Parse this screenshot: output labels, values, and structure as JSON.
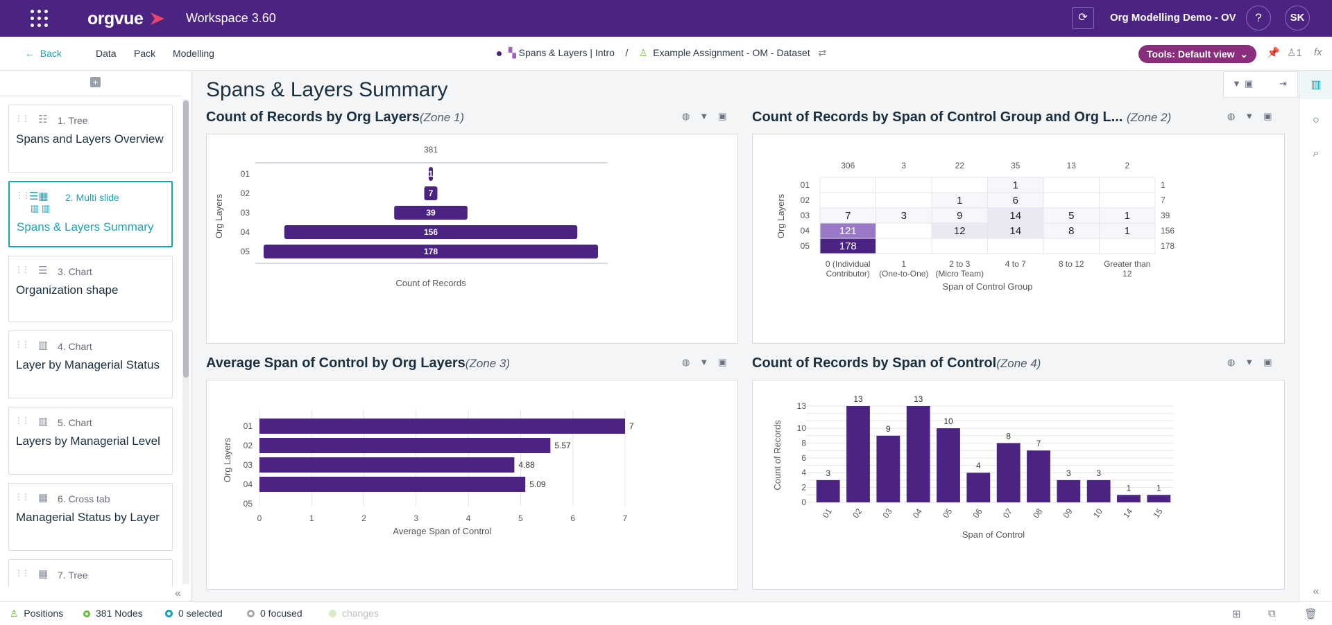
{
  "topbar": {
    "logo": "orgvue",
    "workspace": "Workspace  3.60",
    "project": "Org Modelling Demo - OV",
    "help": "?",
    "user_initials": "SK"
  },
  "subbar": {
    "back": "Back",
    "menu": [
      "Data",
      "Pack",
      "Modelling"
    ],
    "crumb_page": "Spans & Layers | Intro",
    "crumb_sep": "/",
    "crumb_dataset": "Example Assignment - OM - Dataset",
    "tools_label": "Tools: Default view",
    "count": "1"
  },
  "sidebar": {
    "slides": [
      {
        "kind": "1. Tree",
        "title": "Spans and Layers Overview"
      },
      {
        "kind": "2. Multi slide",
        "title": "Spans & Layers Summary"
      },
      {
        "kind": "3. Chart",
        "title": "Organization shape"
      },
      {
        "kind": "4. Chart",
        "title": "Layer by Managerial Status"
      },
      {
        "kind": "5. Chart",
        "title": "Layers by Managerial Level"
      },
      {
        "kind": "6. Cross tab",
        "title": "Managerial Status by Layer"
      },
      {
        "kind": "7. Tree",
        "title": ""
      }
    ]
  },
  "main": {
    "page_title": "Spans & Layers Summary",
    "zones": [
      {
        "title": "Count of Records by Org Layers",
        "zone": "(Zone 1)"
      },
      {
        "title": "Count of Records by Span of Control Group and Org L...",
        "zone": "(Zone 2)"
      },
      {
        "title": "Average Span of Control by Org Layers",
        "zone": "(Zone 3)"
      },
      {
        "title": "Count of Records by Span of Control",
        "zone": "(Zone 4)"
      }
    ]
  },
  "colors": {
    "brand": "#4b2382",
    "accent": "#1aa3b8",
    "tools": "#8b2d7d",
    "bar": "#4b2382"
  },
  "chart_data": [
    {
      "type": "bar",
      "orientation": "horizontal-centered",
      "title": "Count of Records by Org Layers",
      "categories": [
        "01",
        "02",
        "03",
        "04",
        "05"
      ],
      "values": [
        1,
        7,
        39,
        156,
        178
      ],
      "labels": [
        "1",
        "7",
        "39",
        "156",
        "178"
      ],
      "total": "381",
      "xlabel": "Count of Records",
      "ylabel": "Org Layers"
    },
    {
      "type": "heatmap",
      "title": "Count of Records by Span of Control Group and Org Layers",
      "rows": [
        "01",
        "02",
        "03",
        "04",
        "05"
      ],
      "columns": [
        "0 (Individual Contributor)",
        "1 (One-to-One)",
        "2 to 3 (Micro Team)",
        "4 to 7",
        "8 to 12",
        "Greater than 12"
      ],
      "column_totals": [
        "306",
        "3",
        "22",
        "35",
        "13",
        "2"
      ],
      "row_totals": [
        "1",
        "7",
        "39",
        "156",
        "178"
      ],
      "cells": [
        [
          "",
          "",
          "",
          "1",
          "",
          ""
        ],
        [
          "",
          "",
          "1",
          "6",
          "",
          ""
        ],
        [
          "7",
          "3",
          "9",
          "14",
          "5",
          "1"
        ],
        [
          "121",
          "",
          "12",
          "14",
          "8",
          "1"
        ],
        [
          "178",
          "",
          "",
          "",
          "",
          ""
        ]
      ],
      "xlabel": "Span of Control Group",
      "ylabel": "Org Layers"
    },
    {
      "type": "bar",
      "orientation": "horizontal",
      "title": "Average Span of Control by Org Layers",
      "categories": [
        "01",
        "02",
        "03",
        "04",
        "05"
      ],
      "values": [
        7,
        5.57,
        4.88,
        5.09,
        null
      ],
      "labels": [
        "7",
        "5.57",
        "4.88",
        "5.09",
        ""
      ],
      "xlim": [
        0,
        7
      ],
      "xticks": [
        "0",
        "1",
        "2",
        "3",
        "4",
        "5",
        "6",
        "7"
      ],
      "xlabel": "Average Span of Control",
      "ylabel": "Org Layers"
    },
    {
      "type": "bar",
      "title": "Count of Records by Span of Control",
      "categories": [
        "01",
        "02",
        "03",
        "04",
        "05",
        "06",
        "07",
        "08",
        "09",
        "10",
        "14",
        "15"
      ],
      "values": [
        3,
        13,
        9,
        13,
        10,
        4,
        8,
        7,
        3,
        3,
        1,
        1
      ],
      "ylim": [
        0,
        13
      ],
      "yticks": [
        "0",
        "2",
        "4",
        "6",
        "8",
        "10",
        "13"
      ],
      "xlabel": "Span of Control",
      "ylabel": "Count of Records"
    }
  ],
  "status": {
    "positions": "Positions",
    "nodes": "381 Nodes",
    "selected": "0 selected",
    "focused": "0 focused",
    "changes": "changes"
  }
}
